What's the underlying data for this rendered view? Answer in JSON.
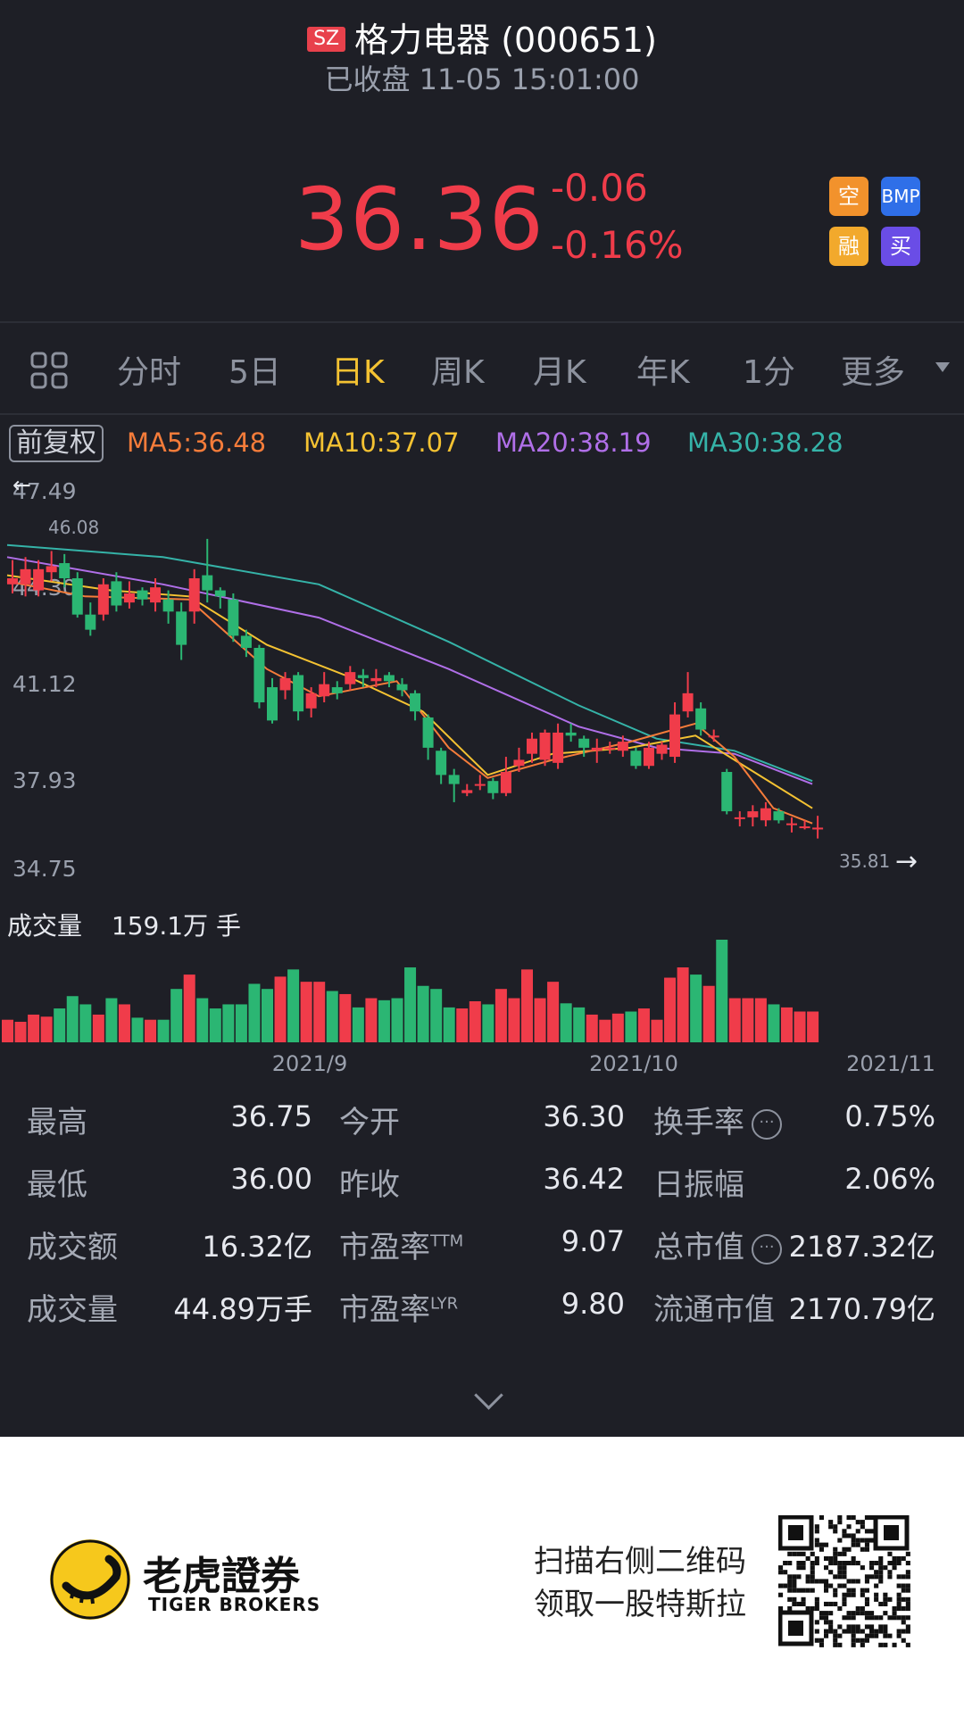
{
  "header": {
    "market": "SZ",
    "title": "格力电器 (000651)",
    "status": "已收盘 11-05 15:01:00",
    "price": "36.36",
    "change": "-0.06",
    "change_pct": "-0.16%",
    "tags": {
      "short": "空",
      "bmp": "BMP",
      "margin": "融",
      "buy": "买"
    },
    "colors": {
      "down_red": "#f03c4a",
      "up_green": "#2bb673",
      "active_tab": "#f4c232"
    }
  },
  "tabs": [
    "分时",
    "5日",
    "日K",
    "周K",
    "月K",
    "年K",
    "1分",
    "更多"
  ],
  "active_tab": "日K",
  "icons": {
    "grid": "grid-icon",
    "more": "chevron-down-icon",
    "info": "info-icon",
    "expand": "chevron-down-icon",
    "left": "arrow-left-icon",
    "right": "arrow-right-icon"
  },
  "ma_legend": {
    "adjust": "前复权",
    "ma5": "MA5:36.48",
    "ma10": "MA10:37.07",
    "ma20": "MA20:38.19",
    "ma30": "MA30:38.28",
    "colors": {
      "ma5": "#f57c3a",
      "ma10": "#f4c232",
      "ma20": "#b06fe8",
      "ma30": "#35b3a8"
    }
  },
  "chart_data": {
    "type": "candlestick",
    "y_ticks": [
      "47.49",
      "44.30",
      "41.12",
      "37.93",
      "34.75"
    ],
    "ylim": [
      34.75,
      47.49
    ],
    "x_ticks": [
      "2021/9",
      "2021/10",
      "2021/11"
    ],
    "max_marker": "46.08",
    "min_marker": "35.81",
    "candles": [
      {
        "o": 44.4,
        "c": 44.6,
        "h": 45.2,
        "l": 44.1
      },
      {
        "o": 44.4,
        "c": 44.9,
        "h": 45.3,
        "l": 44.0
      },
      {
        "o": 44.2,
        "c": 44.9,
        "h": 45.2,
        "l": 44.0
      },
      {
        "o": 44.8,
        "c": 45.0,
        "h": 45.5,
        "l": 44.5
      },
      {
        "o": 45.1,
        "c": 44.6,
        "h": 45.4,
        "l": 44.3
      },
      {
        "o": 44.6,
        "c": 43.4,
        "h": 44.8,
        "l": 43.3
      },
      {
        "o": 43.4,
        "c": 42.9,
        "h": 43.8,
        "l": 42.7
      },
      {
        "o": 43.4,
        "c": 44.4,
        "h": 44.6,
        "l": 43.2
      },
      {
        "o": 44.5,
        "c": 43.7,
        "h": 44.8,
        "l": 43.5
      },
      {
        "o": 43.8,
        "c": 44.1,
        "h": 44.5,
        "l": 43.6
      },
      {
        "o": 44.2,
        "c": 43.9,
        "h": 44.3,
        "l": 43.7
      },
      {
        "o": 43.8,
        "c": 44.3,
        "h": 44.6,
        "l": 43.5
      },
      {
        "o": 43.9,
        "c": 43.5,
        "h": 44.2,
        "l": 43.1
      },
      {
        "o": 43.5,
        "c": 42.4,
        "h": 43.8,
        "l": 41.9
      },
      {
        "o": 43.5,
        "c": 44.6,
        "h": 44.9,
        "l": 43.1
      },
      {
        "o": 44.7,
        "c": 44.2,
        "h": 45.9,
        "l": 43.8
      },
      {
        "o": 44.2,
        "c": 44.0,
        "h": 44.3,
        "l": 43.6
      },
      {
        "o": 43.9,
        "c": 42.7,
        "h": 44.1,
        "l": 42.5
      },
      {
        "o": 42.7,
        "c": 42.3,
        "h": 42.9,
        "l": 42.0
      },
      {
        "o": 42.3,
        "c": 40.5,
        "h": 42.4,
        "l": 40.3
      },
      {
        "o": 41.0,
        "c": 39.9,
        "h": 41.3,
        "l": 39.8
      },
      {
        "o": 40.9,
        "c": 41.3,
        "h": 41.5,
        "l": 40.6
      },
      {
        "o": 41.4,
        "c": 40.2,
        "h": 41.5,
        "l": 39.9
      },
      {
        "o": 40.3,
        "c": 40.8,
        "h": 41.0,
        "l": 40.0
      },
      {
        "o": 40.7,
        "c": 41.1,
        "h": 41.5,
        "l": 40.5
      },
      {
        "o": 41.0,
        "c": 40.8,
        "h": 41.2,
        "l": 40.6
      },
      {
        "o": 41.1,
        "c": 41.5,
        "h": 41.7,
        "l": 40.9
      },
      {
        "o": 41.4,
        "c": 41.3,
        "h": 41.6,
        "l": 41.0
      },
      {
        "o": 41.2,
        "c": 41.3,
        "h": 41.6,
        "l": 41.0
      },
      {
        "o": 41.4,
        "c": 41.2,
        "h": 41.5,
        "l": 41.0
      },
      {
        "o": 41.1,
        "c": 40.9,
        "h": 41.3,
        "l": 40.7
      },
      {
        "o": 40.8,
        "c": 40.2,
        "h": 40.9,
        "l": 39.9
      },
      {
        "o": 40.0,
        "c": 39.0,
        "h": 40.1,
        "l": 38.6
      },
      {
        "o": 38.9,
        "c": 38.1,
        "h": 39.0,
        "l": 37.8
      },
      {
        "o": 38.1,
        "c": 37.8,
        "h": 38.3,
        "l": 37.2
      },
      {
        "o": 37.5,
        "c": 37.6,
        "h": 37.8,
        "l": 37.4
      },
      {
        "o": 37.8,
        "c": 37.8,
        "h": 38.1,
        "l": 37.6
      },
      {
        "o": 37.9,
        "c": 37.5,
        "h": 38.0,
        "l": 37.3
      },
      {
        "o": 37.5,
        "c": 38.2,
        "h": 38.7,
        "l": 37.4
      },
      {
        "o": 38.4,
        "c": 38.6,
        "h": 39.0,
        "l": 38.2
      },
      {
        "o": 38.8,
        "c": 39.3,
        "h": 39.5,
        "l": 38.5
      },
      {
        "o": 38.6,
        "c": 39.5,
        "h": 39.6,
        "l": 38.4
      },
      {
        "o": 38.5,
        "c": 39.5,
        "h": 39.8,
        "l": 38.3
      },
      {
        "o": 39.5,
        "c": 39.4,
        "h": 39.8,
        "l": 39.2
      },
      {
        "o": 39.3,
        "c": 39.0,
        "h": 39.4,
        "l": 38.7
      },
      {
        "o": 38.9,
        "c": 39.0,
        "h": 39.3,
        "l": 38.5
      },
      {
        "o": 39.0,
        "c": 39.0,
        "h": 39.2,
        "l": 38.8
      },
      {
        "o": 38.9,
        "c": 39.2,
        "h": 39.4,
        "l": 38.7
      },
      {
        "o": 38.9,
        "c": 38.4,
        "h": 39.0,
        "l": 38.3
      },
      {
        "o": 38.4,
        "c": 39.0,
        "h": 39.2,
        "l": 38.3
      },
      {
        "o": 38.8,
        "c": 39.1,
        "h": 39.2,
        "l": 38.6
      },
      {
        "o": 38.7,
        "c": 40.1,
        "h": 40.5,
        "l": 38.5
      },
      {
        "o": 40.2,
        "c": 40.8,
        "h": 41.5,
        "l": 40.0
      },
      {
        "o": 40.3,
        "c": 39.6,
        "h": 40.5,
        "l": 39.4
      },
      {
        "o": 39.4,
        "c": 39.4,
        "h": 39.6,
        "l": 39.2
      },
      {
        "o": 38.2,
        "c": 36.9,
        "h": 38.3,
        "l": 36.8
      },
      {
        "o": 36.7,
        "c": 36.7,
        "h": 36.9,
        "l": 36.4
      },
      {
        "o": 36.7,
        "c": 36.9,
        "h": 37.1,
        "l": 36.4
      },
      {
        "o": 36.6,
        "c": 37.0,
        "h": 37.2,
        "l": 36.4
      },
      {
        "o": 36.9,
        "c": 36.6,
        "h": 37.0,
        "l": 36.5
      },
      {
        "o": 36.5,
        "c": 36.5,
        "h": 36.7,
        "l": 36.2
      },
      {
        "o": 36.4,
        "c": 36.4,
        "h": 36.6,
        "l": 36.3
      },
      {
        "o": 36.3,
        "c": 36.36,
        "h": 36.75,
        "l": 36.0
      }
    ],
    "ma_lines": {
      "ma30": [
        [
          0,
          45.7
        ],
        [
          12,
          45.3
        ],
        [
          24,
          44.4
        ],
        [
          34,
          42.5
        ],
        [
          44,
          40.4
        ],
        [
          50,
          39.3
        ],
        [
          56,
          38.9
        ],
        [
          62,
          37.9
        ]
      ],
      "ma20": [
        [
          0,
          45.3
        ],
        [
          12,
          44.4
        ],
        [
          24,
          43.3
        ],
        [
          34,
          41.6
        ],
        [
          44,
          39.7
        ],
        [
          50,
          39.0
        ],
        [
          56,
          38.8
        ],
        [
          62,
          37.8
        ]
      ],
      "ma10": [
        [
          0,
          44.7
        ],
        [
          8,
          44.2
        ],
        [
          14,
          44.0
        ],
        [
          20,
          42.4
        ],
        [
          26,
          41.4
        ],
        [
          32,
          40.2
        ],
        [
          37,
          38.1
        ],
        [
          42,
          38.8
        ],
        [
          48,
          39.0
        ],
        [
          53,
          39.4
        ],
        [
          56,
          38.6
        ],
        [
          62,
          37.0
        ]
      ],
      "ma5": [
        [
          0,
          44.5
        ],
        [
          6,
          44.0
        ],
        [
          14,
          43.9
        ],
        [
          20,
          41.6
        ],
        [
          24,
          40.7
        ],
        [
          30,
          41.2
        ],
        [
          34,
          39.0
        ],
        [
          37,
          38.0
        ],
        [
          42,
          38.6
        ],
        [
          48,
          39.2
        ],
        [
          53,
          39.8
        ],
        [
          56,
          38.7
        ],
        [
          59,
          37.0
        ],
        [
          62,
          36.5
        ]
      ]
    },
    "volume_label": "成交量",
    "volume_value": "159.1万 手",
    "volumes": [
      0.22,
      0.2,
      0.27,
      0.25,
      0.33,
      0.45,
      0.37,
      0.27,
      0.43,
      0.37,
      0.24,
      0.22,
      0.22,
      0.52,
      0.66,
      0.43,
      0.33,
      0.37,
      0.37,
      0.57,
      0.52,
      0.64,
      0.71,
      0.59,
      0.59,
      0.5,
      0.47,
      0.34,
      0.43,
      0.41,
      0.43,
      0.73,
      0.55,
      0.52,
      0.34,
      0.33,
      0.4,
      0.37,
      0.52,
      0.43,
      0.71,
      0.43,
      0.59,
      0.38,
      0.34,
      0.27,
      0.22,
      0.28,
      0.3,
      0.33,
      0.22,
      0.63,
      0.73,
      0.66,
      0.55,
      1.0,
      0.43,
      0.43,
      0.43,
      0.37,
      0.34,
      0.3,
      0.3
    ]
  },
  "stats": [
    [
      {
        "k": "最高",
        "v": "36.75"
      },
      {
        "k": "今开",
        "v": "36.30"
      },
      {
        "k": "换手率",
        "v": "0.75%",
        "info": true
      }
    ],
    [
      {
        "k": "最低",
        "v": "36.00"
      },
      {
        "k": "昨收",
        "v": "36.42"
      },
      {
        "k": "日振幅",
        "v": "2.06%"
      }
    ],
    [
      {
        "k": "成交额",
        "v": "16.32亿"
      },
      {
        "k": "市盈率",
        "sup": "TTM",
        "v": "9.07"
      },
      {
        "k": "总市值",
        "v": "2187.32亿",
        "info": true
      }
    ],
    [
      {
        "k": "成交量",
        "v": "44.89万手"
      },
      {
        "k": "市盈率",
        "sup": "LYR",
        "v": "9.80"
      },
      {
        "k": "流通市值",
        "v": "2170.79亿"
      }
    ]
  ],
  "footer": {
    "brand_cn": "老虎證券",
    "brand_en": "TIGER BROKERS",
    "promo_line1": "扫描右侧二维码",
    "promo_line2": "领取一股特斯拉"
  }
}
